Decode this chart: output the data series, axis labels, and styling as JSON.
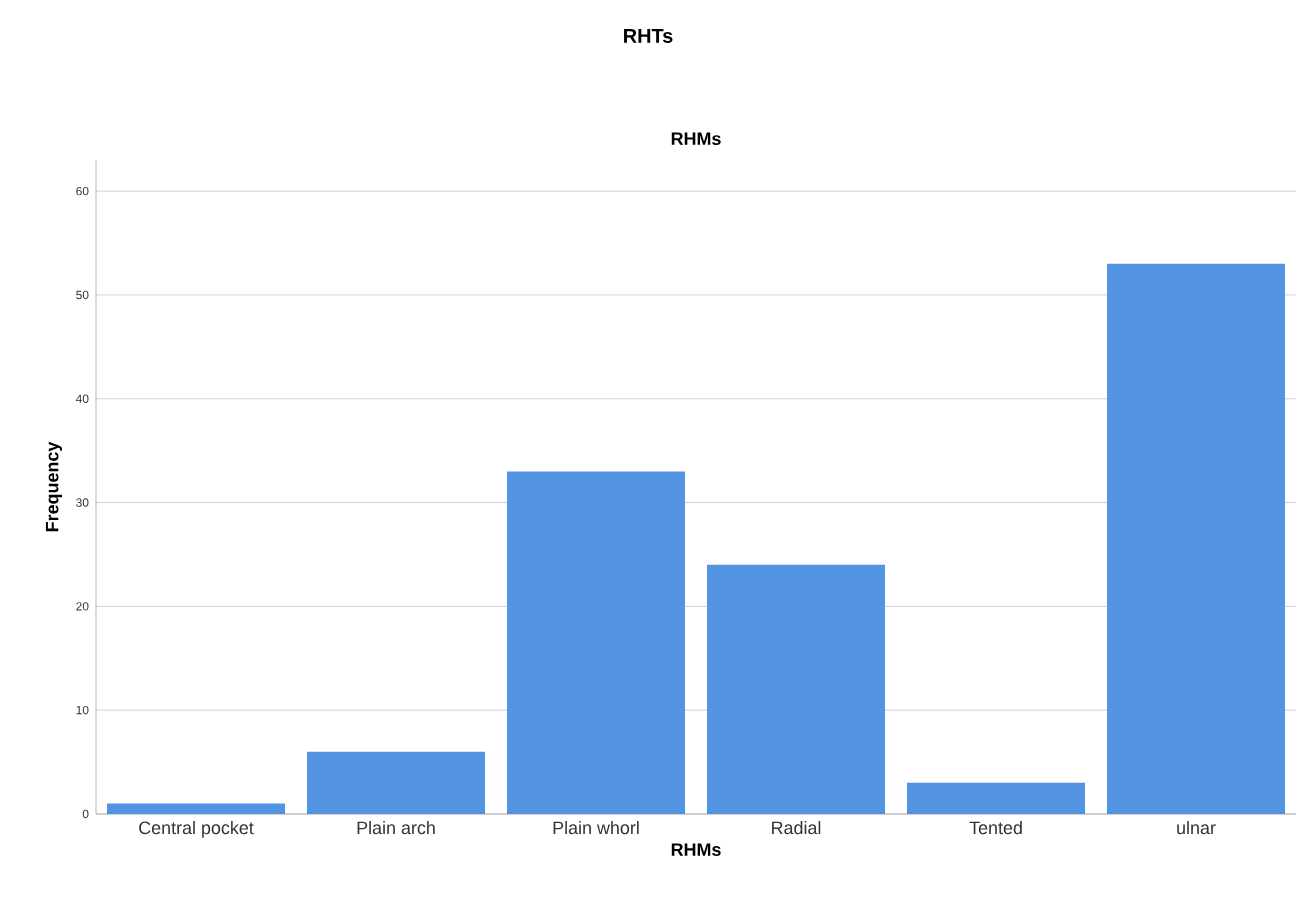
{
  "chart_data": {
    "type": "bar",
    "title": "RHTs",
    "subtitle": "RHMs",
    "xlabel": "RHMs",
    "ylabel": "Frequency",
    "categories": [
      "Central pocket",
      "Plain arch",
      "Plain whorl",
      "Radial",
      "Tented",
      "ulnar"
    ],
    "values": [
      1,
      6,
      33,
      24,
      3,
      53
    ],
    "color": "#5294e2",
    "ylim": [
      0,
      63
    ],
    "yticks": [
      0,
      10,
      20,
      30,
      40,
      50,
      60
    ],
    "grid": "y"
  }
}
